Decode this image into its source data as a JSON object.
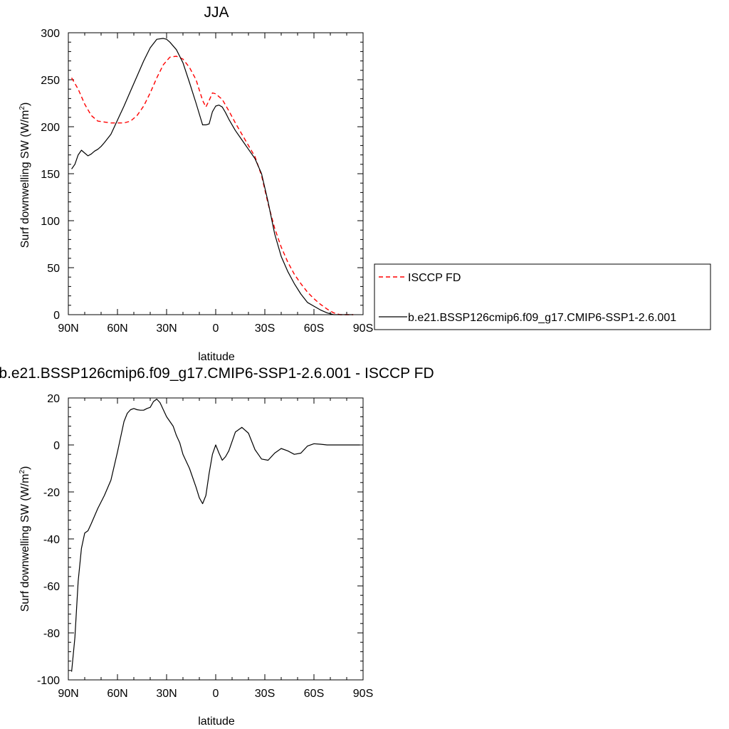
{
  "colors": {
    "isccp": "#ff0000",
    "model": "#000000",
    "axis": "#000000"
  },
  "chart_data": [
    {
      "type": "line",
      "title": "JJA",
      "xlabel": "latitude",
      "ylabel": "Surf downwelling SW (W/m",
      "ylabel_sup": "2",
      "ylabel_end": ")",
      "xlim": [
        90,
        -90
      ],
      "ylim": [
        0,
        300
      ],
      "xticks": [
        {
          "value": 90,
          "label": "90N"
        },
        {
          "value": 60,
          "label": "60N"
        },
        {
          "value": 30,
          "label": "30N"
        },
        {
          "value": 0,
          "label": "0"
        },
        {
          "value": -30,
          "label": "30S"
        },
        {
          "value": -60,
          "label": "60S"
        },
        {
          "value": -90,
          "label": "90S"
        }
      ],
      "yticks": [
        {
          "value": 0,
          "label": "0"
        },
        {
          "value": 50,
          "label": "50"
        },
        {
          "value": 100,
          "label": "100"
        },
        {
          "value": 150,
          "label": "150"
        },
        {
          "value": 200,
          "label": "200"
        },
        {
          "value": 250,
          "label": "250"
        },
        {
          "value": 300,
          "label": "300"
        }
      ],
      "legend": {
        "placement": "right",
        "entries": [
          {
            "label": "ISCCP FD",
            "style": "dashed",
            "color": "#ff0000"
          },
          {
            "label": "b.e21.BSSP126cmip6.f09_g17.CMIP6-SSP1-2.6.001",
            "style": "solid",
            "color": "#000000"
          }
        ]
      },
      "series": [
        {
          "name": "ISCCP FD",
          "color": "#ff0000",
          "dash": true,
          "x": [
            88,
            84,
            80,
            76,
            72,
            68,
            64,
            60,
            56,
            52,
            48,
            44,
            40,
            36,
            32,
            28,
            24,
            20,
            16,
            12,
            8,
            6,
            4,
            2,
            0,
            -4,
            -8,
            -12,
            -16,
            -20,
            -24,
            -28,
            -32,
            -36,
            -40,
            -44,
            -48,
            -52,
            -56,
            -60,
            -64,
            -68,
            -72,
            -76,
            -80,
            -84
          ],
          "y": [
            252,
            240,
            224,
            212,
            206,
            205,
            204,
            204,
            204,
            206,
            212,
            222,
            236,
            252,
            266,
            274,
            275,
            272,
            263,
            250,
            228,
            221,
            228,
            236,
            235,
            229,
            217,
            204,
            192,
            180,
            168,
            148,
            118,
            92,
            72,
            56,
            43,
            33,
            24,
            17,
            11,
            6,
            2,
            0,
            0,
            0
          ]
        },
        {
          "name": "b.e21.BSSP126cmip6.f09_g17.CMIP6-SSP1-2.6.001",
          "color": "#000000",
          "dash": false,
          "x": [
            88,
            86,
            84,
            82,
            80,
            78,
            76,
            74,
            72,
            70,
            68,
            64,
            60,
            56,
            52,
            48,
            44,
            40,
            36,
            32,
            30,
            28,
            24,
            20,
            16,
            12,
            8,
            6,
            4,
            2,
            0,
            -2,
            -4,
            -6,
            -8,
            -12,
            -16,
            -20,
            -24,
            -28,
            -32,
            -36,
            -40,
            -44,
            -48,
            -52,
            -56,
            -60,
            -64,
            -68,
            -72,
            -76,
            -80,
            -84
          ],
          "y": [
            155,
            160,
            170,
            175,
            172,
            169,
            171,
            174,
            176,
            179,
            183,
            192,
            207,
            222,
            238,
            254,
            270,
            284,
            293,
            294,
            293,
            290,
            282,
            268,
            247,
            225,
            202,
            202,
            203,
            216,
            222,
            223,
            221,
            215,
            208,
            196,
            186,
            176,
            166,
            150,
            120,
            86,
            62,
            46,
            33,
            22,
            13,
            9,
            5,
            2,
            0,
            -1,
            -1,
            -1
          ]
        }
      ]
    },
    {
      "type": "line",
      "title": "b.e21.BSSP126cmip6.f09_g17.CMIP6-SSP1-2.6.001 - ISCCP FD",
      "xlabel": "latitude",
      "ylabel": "Surf downwelling SW (W/m",
      "ylabel_sup": "2",
      "ylabel_end": ")",
      "xlim": [
        90,
        -90
      ],
      "ylim": [
        -100,
        20
      ],
      "xticks": [
        {
          "value": 90,
          "label": "90N"
        },
        {
          "value": 60,
          "label": "60N"
        },
        {
          "value": 30,
          "label": "30N"
        },
        {
          "value": 0,
          "label": "0"
        },
        {
          "value": -30,
          "label": "30S"
        },
        {
          "value": -60,
          "label": "60S"
        },
        {
          "value": -90,
          "label": "90S"
        }
      ],
      "yticks": [
        {
          "value": -100,
          "label": "-100"
        },
        {
          "value": -80,
          "label": "-80"
        },
        {
          "value": -60,
          "label": "-60"
        },
        {
          "value": -40,
          "label": "-40"
        },
        {
          "value": -20,
          "label": "-20"
        },
        {
          "value": 0,
          "label": "0"
        },
        {
          "value": 20,
          "label": "20"
        }
      ],
      "series": [
        {
          "name": "",
          "color": "#000000",
          "dash": false,
          "x": [
            88,
            86,
            84,
            82,
            80,
            78,
            76,
            72,
            68,
            64,
            62,
            60,
            58,
            56,
            54,
            52,
            50,
            48,
            46,
            44,
            42,
            40,
            38,
            36,
            34,
            32,
            30,
            28,
            26,
            24,
            22,
            20,
            16,
            12,
            10,
            8,
            6,
            4,
            2,
            0,
            -2,
            -4,
            -6,
            -8,
            -12,
            -16,
            -20,
            -24,
            -28,
            -32,
            -36,
            -40,
            -44,
            -48,
            -52,
            -56,
            -60,
            -64,
            -68,
            -72,
            -76,
            -80,
            -84,
            -88
          ],
          "y": [
            -96.5,
            -82,
            -58,
            -44,
            -37.5,
            -36.5,
            -33.5,
            -27,
            -21.5,
            -15,
            -9,
            -3,
            3.5,
            10,
            13.5,
            15,
            15.5,
            15,
            14.8,
            14.8,
            15.5,
            16,
            18.5,
            19.5,
            18,
            15,
            12,
            10,
            8,
            4,
            1,
            -4,
            -10,
            -18,
            -22.5,
            -25,
            -21.5,
            -12,
            -4,
            0,
            -3.5,
            -6.5,
            -5,
            -2.5,
            5.5,
            7.5,
            5,
            -2,
            -6,
            -6.5,
            -3.5,
            -1.5,
            -2.5,
            -4,
            -3.5,
            -0.5,
            0.5,
            0.3,
            0,
            0,
            0,
            0,
            0,
            0
          ]
        }
      ]
    }
  ]
}
